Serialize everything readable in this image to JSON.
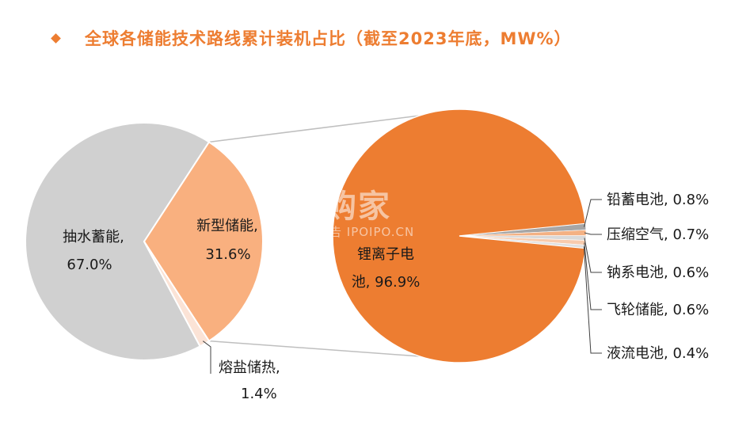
{
  "title": "全球各储能技术路线累计装机占比（截至2023年底，MW%）",
  "watermark": {
    "main": "并购家",
    "sub": "行业报告 IPOIPO.CN"
  },
  "colors": {
    "title": "#ED7D31",
    "pumped": "#D0D0D0",
    "new_storage": "#F9B07F",
    "molten_salt": "#FBE3D6",
    "lithium": "#ED7D31",
    "small": "#C7C7C7",
    "connector": "#BFBFBF",
    "leader": "#404040",
    "text": "#1A1A1A"
  },
  "chart_data": [
    {
      "type": "pie",
      "slices": [
        {
          "label": "抽水蓄能",
          "value": 67.0,
          "value_label": "67.0%"
        },
        {
          "label": "新型储能",
          "value": 31.6,
          "value_label": "31.6%"
        },
        {
          "label": "熔盐储热",
          "value": 1.4,
          "value_label": "1.4%"
        }
      ]
    },
    {
      "type": "pie",
      "slices": [
        {
          "label": "锂离子电池",
          "value": 96.9,
          "value_label": "96.9%"
        },
        {
          "label": "铅蓄电池",
          "value": 0.8,
          "value_label": "0.8%"
        },
        {
          "label": "压缩空气",
          "value": 0.7,
          "value_label": "0.7%"
        },
        {
          "label": "钠系电池",
          "value": 0.6,
          "value_label": "0.6%"
        },
        {
          "label": "飞轮储能",
          "value": 0.6,
          "value_label": "0.6%"
        },
        {
          "label": "液流电池",
          "value": 0.4,
          "value_label": "0.4%"
        }
      ]
    }
  ]
}
